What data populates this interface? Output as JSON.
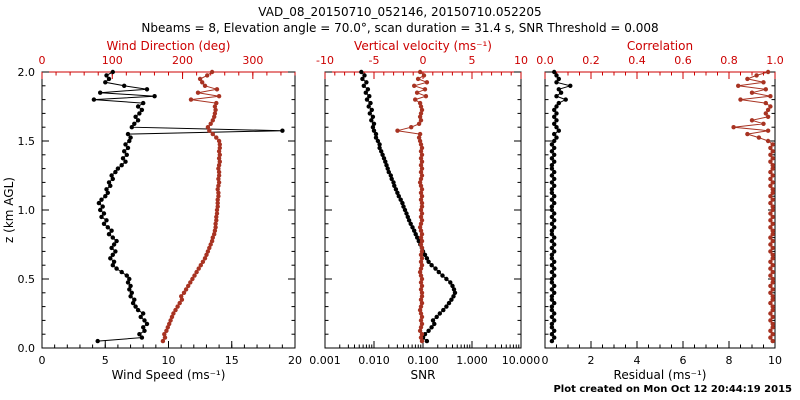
{
  "chart_data": {
    "type": "line",
    "title": "VAD_08_20150710_052146, 20150710.052205",
    "subtitle": "Nbeams = 8, Elevation angle = 70.0°, scan duration = 31.4 s, SNR Threshold = 0.008",
    "footer": "Plot created on Mon Oct 12 20:44:19 2015",
    "ylabel": "z (km AGL)",
    "ylim": [
      0,
      2
    ],
    "yticks": [
      0,
      0.5,
      1,
      1.5,
      2
    ],
    "ytick_labels": [
      "0.0",
      "0.5",
      "1.0",
      "1.5",
      "2.0"
    ],
    "colors": {
      "black": "#000000",
      "red_axis": "#cc0000",
      "red_series": "#a83322",
      "background": "#ffffff"
    },
    "z": [
      0.05,
      0.075,
      0.1,
      0.125,
      0.15,
      0.175,
      0.2,
      0.225,
      0.25,
      0.275,
      0.3,
      0.325,
      0.35,
      0.375,
      0.4,
      0.425,
      0.45,
      0.475,
      0.5,
      0.525,
      0.55,
      0.575,
      0.6,
      0.625,
      0.65,
      0.675,
      0.7,
      0.725,
      0.75,
      0.775,
      0.8,
      0.825,
      0.85,
      0.875,
      0.9,
      0.925,
      0.95,
      0.975,
      1.0,
      1.025,
      1.05,
      1.075,
      1.1,
      1.125,
      1.15,
      1.175,
      1.2,
      1.225,
      1.25,
      1.275,
      1.3,
      1.325,
      1.35,
      1.375,
      1.4,
      1.425,
      1.45,
      1.475,
      1.5,
      1.525,
      1.55,
      1.575,
      1.6,
      1.625,
      1.65,
      1.675,
      1.7,
      1.725,
      1.75,
      1.775,
      1.8,
      1.825,
      1.85,
      1.875,
      1.9,
      1.925,
      1.95,
      1.975,
      2.0
    ],
    "panels": [
      {
        "name": "panel-wind",
        "bottom": {
          "name": "wind-speed-axis",
          "label": "Wind Speed (ms⁻¹)",
          "lim": [
            0,
            20
          ],
          "ticks": [
            0,
            5,
            10,
            15,
            20
          ],
          "tick_labels": [
            "0",
            "5",
            "10",
            "15",
            "20"
          ],
          "minor_div": 5,
          "series": "wind_speed"
        },
        "top": {
          "name": "wind-direction-axis",
          "label": "Wind Direction (deg)",
          "lim": [
            0,
            360
          ],
          "ticks": [
            0,
            100,
            200,
            300
          ],
          "tick_labels": [
            "0",
            "100",
            "200",
            "300"
          ],
          "minor_div": 5,
          "series": "wind_direction"
        }
      },
      {
        "name": "panel-snr-vertical-velocity",
        "bottom": {
          "name": "snr-axis",
          "label": "SNR",
          "scale": "log",
          "lim": [
            0.001,
            10
          ],
          "ticks": [
            0.001,
            0.01,
            0.1,
            1,
            10
          ],
          "tick_labels": [
            "0.001",
            "0.010",
            "0.100",
            "1.000",
            "10.000"
          ],
          "series": "snr"
        },
        "top": {
          "name": "vertical-velocity-axis",
          "label": "Vertical velocity (ms⁻¹)",
          "lim": [
            -10,
            10
          ],
          "ticks": [
            -10,
            -5,
            0,
            5,
            10
          ],
          "tick_labels": [
            "-10",
            "-5",
            "0",
            "5",
            "10"
          ],
          "minor_div": 5,
          "series": "vertical_velocity"
        }
      },
      {
        "name": "panel-residual-correlation",
        "bottom": {
          "name": "residual-axis",
          "label": "Residual (ms⁻¹)",
          "lim": [
            0,
            10
          ],
          "ticks": [
            0,
            2,
            4,
            6,
            8,
            10
          ],
          "tick_labels": [
            "0",
            "2",
            "4",
            "6",
            "8",
            "10"
          ],
          "minor_div": 4,
          "series": "residual"
        },
        "top": {
          "name": "correlation-axis",
          "label": "Correlation",
          "lim": [
            0,
            1
          ],
          "ticks": [
            0,
            0.2,
            0.4,
            0.6,
            0.8,
            1
          ],
          "tick_labels": [
            "0.0",
            "0.2",
            "0.4",
            "0.6",
            "0.8",
            "1.0"
          ],
          "minor_div": 4,
          "series": "correlation"
        }
      }
    ],
    "series": {
      "wind_speed": {
        "name": "wind-speed-series",
        "color": "black",
        "values": [
          4.4,
          7.9,
          7.7,
          8.1,
          8.0,
          8.3,
          8.1,
          7.8,
          8.0,
          7.6,
          7.4,
          7.2,
          7.3,
          7.0,
          7.1,
          6.9,
          7.0,
          6.8,
          6.9,
          6.7,
          6.3,
          5.9,
          5.6,
          5.7,
          5.4,
          5.6,
          5.8,
          5.5,
          5.7,
          5.9,
          5.6,
          5.3,
          5.5,
          5.2,
          4.9,
          5.1,
          4.7,
          4.9,
          4.6,
          4.8,
          4.5,
          4.7,
          5.0,
          5.2,
          5.1,
          5.4,
          5.3,
          5.6,
          5.5,
          5.8,
          6.0,
          6.3,
          6.6,
          6.4,
          6.7,
          6.5,
          6.8,
          6.6,
          6.9,
          7.0,
          6.8,
          19.0,
          7.1,
          7.3,
          7.6,
          7.4,
          7.7,
          7.9,
          7.6,
          8.0,
          4.1,
          8.9,
          4.6,
          8.3,
          6.5,
          5.0,
          5.3,
          5.1,
          5.6
        ]
      },
      "wind_direction": {
        "name": "wind-direction-series",
        "color": "red",
        "values": [
          172,
          175,
          174,
          177,
          179,
          181,
          183,
          185,
          187,
          190,
          193,
          196,
          199,
          198,
          202,
          205,
          208,
          211,
          214,
          217,
          220,
          223,
          226,
          229,
          232,
          234,
          236,
          238,
          240,
          242,
          243,
          245,
          246,
          247,
          247,
          248,
          248,
          249,
          249,
          250,
          250,
          250,
          251,
          251,
          250,
          251,
          252,
          251,
          252,
          252,
          251,
          252,
          253,
          252,
          253,
          252,
          253,
          253,
          252,
          248,
          243,
          238,
          236,
          240,
          243,
          245,
          246,
          247,
          246,
          248,
          212,
          252,
          222,
          249,
          232,
          228,
          225,
          235,
          242
        ]
      },
      "snr": {
        "name": "snr-series",
        "color": "black",
        "values": [
          0.12,
          0.1,
          0.11,
          0.13,
          0.15,
          0.17,
          0.16,
          0.19,
          0.22,
          0.26,
          0.3,
          0.34,
          0.38,
          0.42,
          0.45,
          0.43,
          0.4,
          0.36,
          0.3,
          0.25,
          0.21,
          0.18,
          0.15,
          0.13,
          0.12,
          0.11,
          0.1,
          0.095,
          0.088,
          0.082,
          0.076,
          0.071,
          0.066,
          0.061,
          0.056,
          0.052,
          0.049,
          0.046,
          0.043,
          0.04,
          0.038,
          0.035,
          0.032,
          0.03,
          0.028,
          0.026,
          0.025,
          0.023,
          0.022,
          0.02,
          0.019,
          0.018,
          0.017,
          0.016,
          0.015,
          0.014,
          0.013,
          0.013,
          0.012,
          0.011,
          0.011,
          0.01,
          0.0095,
          0.01,
          0.0088,
          0.0095,
          0.0082,
          0.009,
          0.0078,
          0.0085,
          0.0072,
          0.008,
          0.0068,
          0.0075,
          0.0062,
          0.007,
          0.0058,
          0.0064,
          0.0055
        ]
      },
      "vertical_velocity": {
        "name": "vertical-velocity-series",
        "color": "red",
        "values": [
          -0.1,
          -0.2,
          -0.1,
          -0.3,
          -0.2,
          -0.1,
          -0.2,
          -0.1,
          -0.2,
          -0.3,
          -0.2,
          -0.1,
          -0.2,
          -0.1,
          -0.1,
          -0.2,
          -0.1,
          -0.2,
          -0.1,
          -0.2,
          -0.3,
          -0.2,
          -0.1,
          -0.2,
          -0.1,
          -0.2,
          -0.1,
          -0.1,
          -0.2,
          -0.1,
          -0.2,
          -0.1,
          -0.2,
          -0.3,
          -0.2,
          -0.1,
          -0.2,
          -0.1,
          -0.2,
          -0.1,
          -0.1,
          -0.2,
          -0.1,
          -0.2,
          -0.1,
          -0.2,
          -0.3,
          -0.2,
          -0.1,
          -0.2,
          -0.1,
          -0.2,
          -0.1,
          -0.2,
          -0.1,
          -0.2,
          -0.1,
          -0.2,
          -0.3,
          -0.4,
          -0.3,
          -2.6,
          -1.2,
          -0.4,
          -0.2,
          -0.3,
          -0.2,
          -0.1,
          -0.2,
          -0.3,
          -0.8,
          0.3,
          -0.6,
          0.2,
          -0.9,
          0.4,
          -0.5,
          0.1,
          -0.3
        ]
      },
      "residual": {
        "name": "residual-series",
        "color": "black",
        "values": [
          0.3,
          0.4,
          0.3,
          0.4,
          0.3,
          0.3,
          0.4,
          0.3,
          0.4,
          0.3,
          0.3,
          0.4,
          0.3,
          0.3,
          0.4,
          0.3,
          0.4,
          0.3,
          0.3,
          0.4,
          0.3,
          0.4,
          0.3,
          0.4,
          0.3,
          0.3,
          0.4,
          0.3,
          0.4,
          0.3,
          0.4,
          0.3,
          0.3,
          0.4,
          0.3,
          0.4,
          0.3,
          0.4,
          0.3,
          0.3,
          0.4,
          0.3,
          0.4,
          0.3,
          0.3,
          0.4,
          0.3,
          0.4,
          0.3,
          0.4,
          0.3,
          0.3,
          0.4,
          0.3,
          0.4,
          0.3,
          0.4,
          0.3,
          0.4,
          0.5,
          0.4,
          0.6,
          0.5,
          0.4,
          0.5,
          0.4,
          0.5,
          0.4,
          0.5,
          0.6,
          0.9,
          0.5,
          0.7,
          0.6,
          1.1,
          0.5,
          0.6,
          0.5,
          0.4
        ]
      },
      "correlation": {
        "name": "correlation-series",
        "color": "red",
        "values": [
          0.99,
          0.98,
          0.99,
          0.98,
          0.99,
          0.99,
          0.98,
          0.99,
          0.98,
          0.99,
          0.99,
          0.98,
          0.99,
          0.99,
          0.98,
          0.99,
          0.98,
          0.99,
          0.99,
          0.98,
          0.99,
          0.98,
          0.99,
          0.98,
          0.99,
          0.99,
          0.98,
          0.99,
          0.98,
          0.99,
          0.98,
          0.99,
          0.99,
          0.98,
          0.99,
          0.98,
          0.99,
          0.98,
          0.99,
          0.99,
          0.98,
          0.99,
          0.98,
          0.99,
          0.99,
          0.98,
          0.99,
          0.98,
          0.99,
          0.98,
          0.99,
          0.99,
          0.98,
          0.99,
          0.98,
          0.99,
          0.98,
          0.99,
          0.97,
          0.93,
          0.88,
          0.97,
          0.82,
          0.95,
          0.9,
          0.97,
          0.96,
          0.97,
          0.98,
          0.96,
          0.85,
          0.98,
          0.9,
          0.96,
          0.84,
          0.95,
          0.88,
          0.92,
          0.97
        ]
      }
    }
  }
}
